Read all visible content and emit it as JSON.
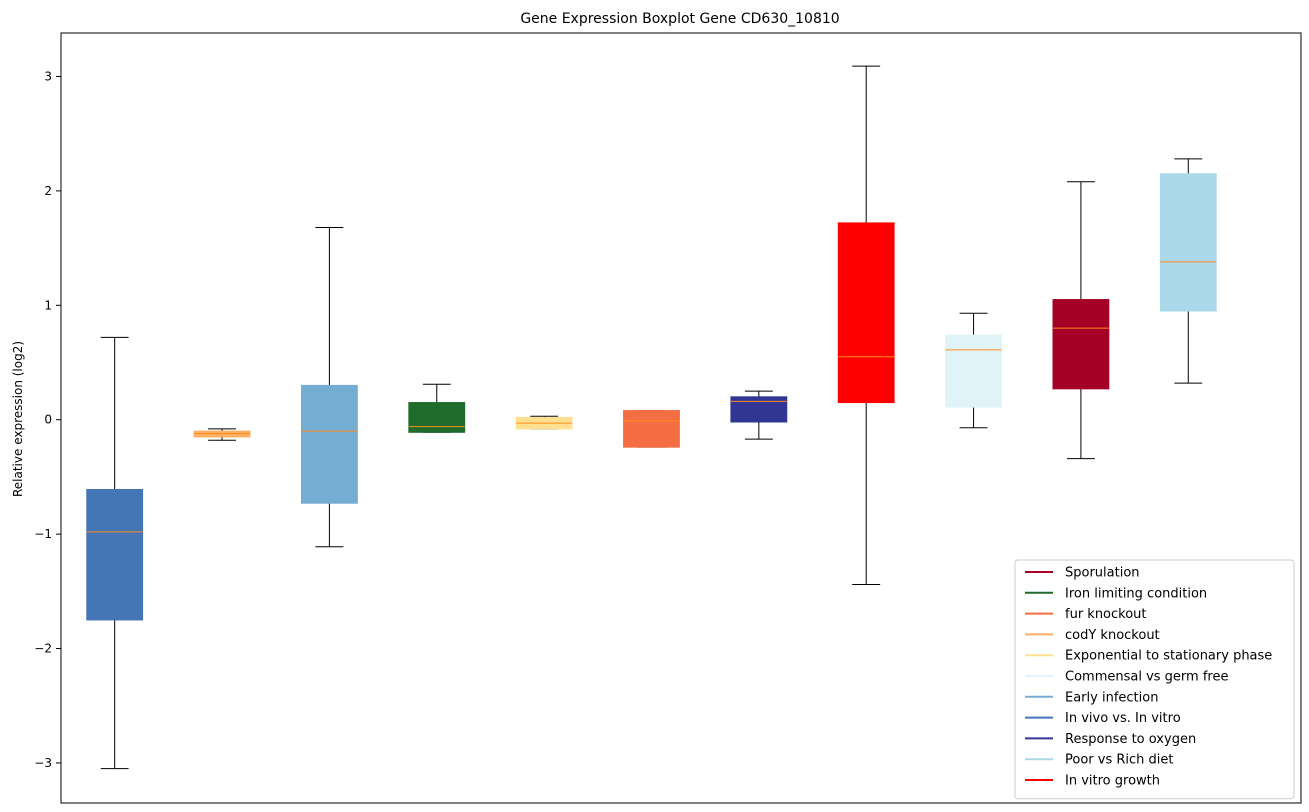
{
  "chart_data": {
    "type": "boxplot",
    "title": "Gene Expression Boxplot Gene CD630_10810",
    "xlabel": "",
    "ylabel": "Relative expression (log2)",
    "ylim": [
      -3.35,
      3.38
    ],
    "yticks": [
      -3,
      -2,
      -1,
      0,
      1,
      2,
      3
    ],
    "ytick_labels": [
      "−3",
      "−2",
      "−1",
      "0",
      "1",
      "2",
      "3"
    ],
    "median_color": "#ff8c1a",
    "boxes": [
      {
        "series": "In vivo vs. In vitro",
        "color": "#4575b4",
        "whisker_low": -3.05,
        "q1": -1.75,
        "median": -0.98,
        "q3": -0.61,
        "whisker_high": 0.72
      },
      {
        "series": "codY knockout",
        "color": "#fdae61",
        "whisker_low": -0.18,
        "q1": -0.15,
        "median": -0.12,
        "q3": -0.1,
        "whisker_high": -0.08
      },
      {
        "series": "Early infection",
        "color": "#74add1",
        "whisker_low": -1.11,
        "q1": -0.73,
        "median": -0.1,
        "q3": 0.3,
        "whisker_high": 1.68
      },
      {
        "series": "Iron limiting condition",
        "color": "#1f6b2a",
        "whisker_low": -0.11,
        "q1": -0.11,
        "median": -0.06,
        "q3": 0.15,
        "whisker_high": 0.31
      },
      {
        "series": "Exponential to stationary phase",
        "color": "#fee090",
        "whisker_low": -0.08,
        "q1": -0.08,
        "median": -0.03,
        "q3": 0.02,
        "whisker_high": 0.03
      },
      {
        "series": "fur knockout",
        "color": "#f46d43",
        "whisker_low": -0.24,
        "q1": -0.24,
        "median": -0.01,
        "q3": 0.08,
        "whisker_high": 0.08
      },
      {
        "series": "Response to oxygen",
        "color": "#313695",
        "whisker_low": -0.17,
        "q1": -0.02,
        "median": 0.16,
        "q3": 0.2,
        "whisker_high": 0.25
      },
      {
        "series": "In vitro growth",
        "color": "#ff0000",
        "whisker_low": -1.44,
        "q1": 0.15,
        "median": 0.55,
        "q3": 1.72,
        "whisker_high": 3.09
      },
      {
        "series": "Commensal vs germ free",
        "color": "#e0f3f8",
        "whisker_low": -0.07,
        "q1": 0.11,
        "median": 0.61,
        "q3": 0.74,
        "whisker_high": 0.93
      },
      {
        "series": "Sporulation",
        "color": "#a50026",
        "whisker_low": -0.34,
        "q1": 0.27,
        "median": 0.8,
        "q3": 1.05,
        "whisker_high": 2.08
      },
      {
        "series": "Poor vs Rich diet",
        "color": "#abd9e9",
        "whisker_low": 0.32,
        "q1": 0.95,
        "median": 1.38,
        "q3": 2.15,
        "whisker_high": 2.28
      }
    ],
    "legend": {
      "position": "lower-right",
      "entries": [
        {
          "label": "Sporulation",
          "color": "#a50026"
        },
        {
          "label": "Iron limiting condition",
          "color": "#1f6b2a"
        },
        {
          "label": "fur knockout",
          "color": "#f46d43"
        },
        {
          "label": "codY knockout",
          "color": "#fdae61"
        },
        {
          "label": "Exponential to stationary phase",
          "color": "#fee090"
        },
        {
          "label": "Commensal vs germ free",
          "color": "#e0f3f8"
        },
        {
          "label": "Early infection",
          "color": "#74add1"
        },
        {
          "label": "In vivo vs. In vitro",
          "color": "#4575b4"
        },
        {
          "label": "Response to oxygen",
          "color": "#313695"
        },
        {
          "label": "Poor vs Rich diet",
          "color": "#abd9e9"
        },
        {
          "label": "In vitro growth",
          "color": "#ff0000"
        }
      ]
    }
  }
}
